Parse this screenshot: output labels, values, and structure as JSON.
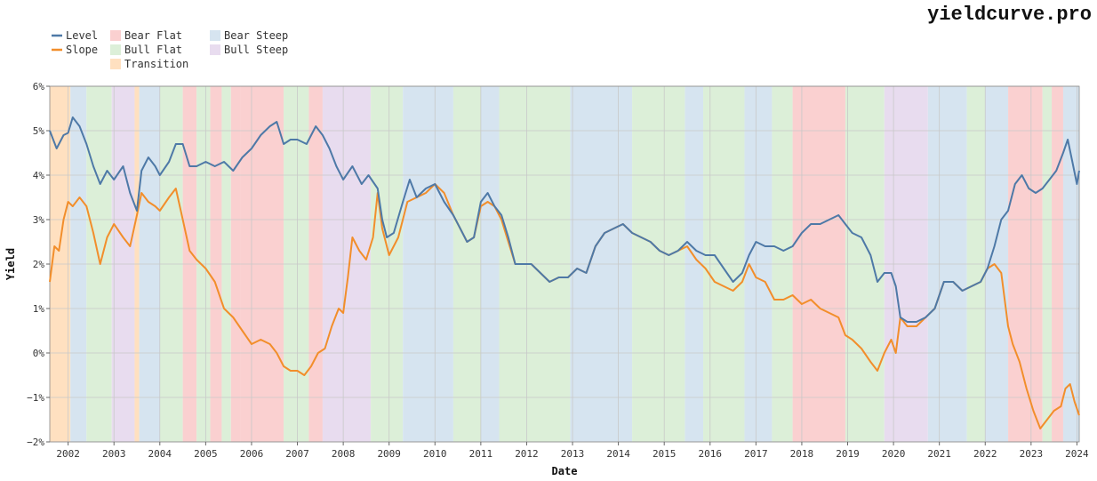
{
  "brand": "yieldcurve.pro",
  "chart_data": {
    "type": "line",
    "xlabel": "Date",
    "ylabel": "Yield",
    "xlim": [
      2001.6,
      2024.05
    ],
    "ylim": [
      -2,
      6
    ],
    "y_ticks": [
      6,
      5,
      4,
      3,
      2,
      1,
      0,
      -1,
      -2
    ],
    "y_tick_labels": [
      "6%",
      "5%",
      "4%",
      "3%",
      "2%",
      "1%",
      "0%",
      "−1%",
      "−2%"
    ],
    "x_ticks": [
      2002,
      2003,
      2004,
      2005,
      2006,
      2007,
      2008,
      2009,
      2010,
      2011,
      2012,
      2013,
      2014,
      2015,
      2016,
      2017,
      2018,
      2019,
      2020,
      2021,
      2022,
      2023,
      2024
    ],
    "grid": true,
    "legend_placement": "top-left",
    "legend": [
      {
        "label": "Level",
        "kind": "line",
        "color": "#4e79a7"
      },
      {
        "label": "Slope",
        "kind": "line",
        "color": "#f28e2b"
      },
      {
        "label": "Transition",
        "kind": "regime",
        "color": "#ffe0c0"
      },
      {
        "label": "Bear Flat",
        "kind": "regime",
        "color": "#fad0d0"
      },
      {
        "label": "Bull Flat",
        "kind": "regime",
        "color": "#dcefd8"
      },
      {
        "label": "Bear Steep",
        "kind": "regime",
        "color": "#d6e4f0"
      },
      {
        "label": "Bull Steep",
        "kind": "regime",
        "color": "#e8dcef"
      }
    ],
    "regime_colors": {
      "Transition": "#ffe0c0",
      "Bear Flat": "#fad0d0",
      "Bull Flat": "#dcefd8",
      "Bear Steep": "#d6e4f0",
      "Bull Steep": "#e8dcef"
    },
    "regimes": [
      {
        "start": 2001.6,
        "end": 2002.05,
        "regime": "Transition"
      },
      {
        "start": 2002.05,
        "end": 2002.4,
        "regime": "Bear Steep"
      },
      {
        "start": 2002.4,
        "end": 2002.95,
        "regime": "Bull Flat"
      },
      {
        "start": 2002.95,
        "end": 2003.45,
        "regime": "Bull Steep"
      },
      {
        "start": 2003.45,
        "end": 2003.55,
        "regime": "Transition"
      },
      {
        "start": 2003.55,
        "end": 2004.0,
        "regime": "Bear Steep"
      },
      {
        "start": 2004.0,
        "end": 2004.5,
        "regime": "Bull Flat"
      },
      {
        "start": 2004.5,
        "end": 2004.8,
        "regime": "Bear Flat"
      },
      {
        "start": 2004.8,
        "end": 2005.1,
        "regime": "Bull Flat"
      },
      {
        "start": 2005.1,
        "end": 2005.35,
        "regime": "Bear Flat"
      },
      {
        "start": 2005.35,
        "end": 2005.55,
        "regime": "Bull Flat"
      },
      {
        "start": 2005.55,
        "end": 2005.75,
        "regime": "Bear Flat"
      },
      {
        "start": 2005.75,
        "end": 2006.7,
        "regime": "Bear Flat"
      },
      {
        "start": 2006.7,
        "end": 2007.25,
        "regime": "Bull Flat"
      },
      {
        "start": 2007.25,
        "end": 2007.55,
        "regime": "Bear Flat"
      },
      {
        "start": 2007.55,
        "end": 2008.6,
        "regime": "Bull Steep"
      },
      {
        "start": 2008.6,
        "end": 2009.3,
        "regime": "Bull Flat"
      },
      {
        "start": 2009.3,
        "end": 2010.4,
        "regime": "Bear Steep"
      },
      {
        "start": 2010.4,
        "end": 2011.0,
        "regime": "Bull Flat"
      },
      {
        "start": 2011.0,
        "end": 2011.4,
        "regime": "Bear Steep"
      },
      {
        "start": 2011.4,
        "end": 2012.95,
        "regime": "Bull Flat"
      },
      {
        "start": 2012.95,
        "end": 2014.3,
        "regime": "Bear Steep"
      },
      {
        "start": 2014.3,
        "end": 2015.45,
        "regime": "Bull Flat"
      },
      {
        "start": 2015.45,
        "end": 2015.85,
        "regime": "Bear Steep"
      },
      {
        "start": 2015.85,
        "end": 2016.75,
        "regime": "Bull Flat"
      },
      {
        "start": 2016.75,
        "end": 2017.35,
        "regime": "Bear Steep"
      },
      {
        "start": 2017.35,
        "end": 2017.8,
        "regime": "Bull Flat"
      },
      {
        "start": 2017.8,
        "end": 2018.95,
        "regime": "Bear Flat"
      },
      {
        "start": 2018.95,
        "end": 2019.8,
        "regime": "Bull Flat"
      },
      {
        "start": 2019.8,
        "end": 2020.75,
        "regime": "Bull Steep"
      },
      {
        "start": 2020.75,
        "end": 2021.6,
        "regime": "Bear Steep"
      },
      {
        "start": 2021.6,
        "end": 2022.0,
        "regime": "Bull Flat"
      },
      {
        "start": 2022.0,
        "end": 2022.5,
        "regime": "Bear Steep"
      },
      {
        "start": 2022.5,
        "end": 2023.25,
        "regime": "Bear Flat"
      },
      {
        "start": 2023.25,
        "end": 2023.45,
        "regime": "Bull Flat"
      },
      {
        "start": 2023.45,
        "end": 2023.7,
        "regime": "Bear Flat"
      },
      {
        "start": 2023.7,
        "end": 2024.05,
        "regime": "Bear Steep"
      }
    ],
    "series": [
      {
        "name": "Level",
        "color": "#4e79a7",
        "x": [
          2001.6,
          2001.75,
          2001.9,
          2002.0,
          2002.1,
          2002.25,
          2002.4,
          2002.55,
          2002.7,
          2002.85,
          2003.0,
          2003.2,
          2003.35,
          2003.5,
          2003.6,
          2003.75,
          2003.9,
          2004.0,
          2004.2,
          2004.35,
          2004.5,
          2004.65,
          2004.8,
          2005.0,
          2005.2,
          2005.4,
          2005.6,
          2005.8,
          2006.0,
          2006.2,
          2006.4,
          2006.55,
          2006.7,
          2006.85,
          2007.0,
          2007.2,
          2007.4,
          2007.55,
          2007.7,
          2007.85,
          2008.0,
          2008.2,
          2008.4,
          2008.55,
          2008.75,
          2008.85,
          2008.95,
          2009.1,
          2009.3,
          2009.45,
          2009.6,
          2009.8,
          2010.0,
          2010.2,
          2010.4,
          2010.55,
          2010.7,
          2010.85,
          2011.0,
          2011.15,
          2011.3,
          2011.45,
          2011.6,
          2011.75,
          2011.9,
          2012.1,
          2012.3,
          2012.5,
          2012.7,
          2012.9,
          2013.1,
          2013.3,
          2013.5,
          2013.7,
          2013.9,
          2014.1,
          2014.3,
          2014.5,
          2014.7,
          2014.9,
          2015.1,
          2015.3,
          2015.5,
          2015.7,
          2015.9,
          2016.1,
          2016.3,
          2016.5,
          2016.7,
          2016.85,
          2017.0,
          2017.2,
          2017.4,
          2017.6,
          2017.8,
          2018.0,
          2018.2,
          2018.4,
          2018.6,
          2018.8,
          2018.95,
          2019.1,
          2019.3,
          2019.5,
          2019.65,
          2019.8,
          2019.95,
          2020.05,
          2020.15,
          2020.3,
          2020.5,
          2020.7,
          2020.9,
          2021.1,
          2021.3,
          2021.5,
          2021.7,
          2021.9,
          2022.05,
          2022.2,
          2022.35,
          2022.5,
          2022.65,
          2022.8,
          2022.95,
          2023.1,
          2023.25,
          2023.4,
          2023.55,
          2023.7,
          2023.8,
          2023.9,
          2024.0,
          2024.05
        ],
        "y": [
          5.0,
          4.6,
          4.9,
          4.95,
          5.3,
          5.1,
          4.7,
          4.2,
          3.8,
          4.1,
          3.9,
          4.2,
          3.6,
          3.2,
          4.1,
          4.4,
          4.2,
          4.0,
          4.3,
          4.7,
          4.7,
          4.2,
          4.2,
          4.3,
          4.2,
          4.3,
          4.1,
          4.4,
          4.6,
          4.9,
          5.1,
          5.2,
          4.7,
          4.8,
          4.8,
          4.7,
          5.1,
          4.9,
          4.6,
          4.2,
          3.9,
          4.2,
          3.8,
          4.0,
          3.7,
          3.0,
          2.6,
          2.7,
          3.4,
          3.9,
          3.5,
          3.7,
          3.8,
          3.4,
          3.1,
          2.8,
          2.5,
          2.6,
          3.4,
          3.6,
          3.3,
          3.1,
          2.6,
          2.0,
          2.0,
          2.0,
          1.8,
          1.6,
          1.7,
          1.7,
          1.9,
          1.8,
          2.4,
          2.7,
          2.8,
          2.9,
          2.7,
          2.6,
          2.5,
          2.3,
          2.2,
          2.3,
          2.5,
          2.3,
          2.2,
          2.2,
          1.9,
          1.6,
          1.8,
          2.2,
          2.5,
          2.4,
          2.4,
          2.3,
          2.4,
          2.7,
          2.9,
          2.9,
          3.0,
          3.1,
          2.9,
          2.7,
          2.6,
          2.2,
          1.6,
          1.8,
          1.8,
          1.5,
          0.8,
          0.7,
          0.7,
          0.8,
          1.0,
          1.6,
          1.6,
          1.4,
          1.5,
          1.6,
          1.9,
          2.4,
          3.0,
          3.2,
          3.8,
          4.0,
          3.7,
          3.6,
          3.7,
          3.9,
          4.1,
          4.5,
          4.8,
          4.3,
          3.8,
          4.1
        ]
      },
      {
        "name": "Slope",
        "color": "#f28e2b",
        "x": [
          2001.6,
          2001.7,
          2001.8,
          2001.9,
          2002.0,
          2002.1,
          2002.25,
          2002.4,
          2002.55,
          2002.7,
          2002.85,
          2003.0,
          2003.2,
          2003.35,
          2003.5,
          2003.6,
          2003.75,
          2003.9,
          2004.0,
          2004.2,
          2004.35,
          2004.5,
          2004.65,
          2004.8,
          2005.0,
          2005.2,
          2005.4,
          2005.6,
          2005.8,
          2006.0,
          2006.2,
          2006.4,
          2006.55,
          2006.7,
          2006.85,
          2007.0,
          2007.15,
          2007.3,
          2007.45,
          2007.6,
          2007.75,
          2007.9,
          2008.0,
          2008.1,
          2008.2,
          2008.35,
          2008.5,
          2008.65,
          2008.75,
          2008.85,
          2009.0,
          2009.2,
          2009.4,
          2009.6,
          2009.8,
          2010.0,
          2010.2,
          2010.4,
          2010.55,
          2010.7,
          2010.85,
          2011.0,
          2011.15,
          2011.3,
          2011.45,
          2011.6,
          2011.75,
          2011.9,
          2012.1,
          2012.3,
          2012.5,
          2012.7,
          2012.9,
          2013.1,
          2013.3,
          2013.5,
          2013.7,
          2013.9,
          2014.1,
          2014.3,
          2014.5,
          2014.7,
          2014.9,
          2015.1,
          2015.3,
          2015.5,
          2015.7,
          2015.9,
          2016.1,
          2016.3,
          2016.5,
          2016.7,
          2016.85,
          2017.0,
          2017.2,
          2017.4,
          2017.6,
          2017.8,
          2018.0,
          2018.2,
          2018.4,
          2018.6,
          2018.8,
          2018.95,
          2019.1,
          2019.3,
          2019.5,
          2019.65,
          2019.8,
          2019.95,
          2020.05,
          2020.15,
          2020.3,
          2020.5,
          2020.7,
          2020.9,
          2021.1,
          2021.3,
          2021.5,
          2021.7,
          2021.9,
          2022.05,
          2022.2,
          2022.35,
          2022.5,
          2022.6,
          2022.75,
          2022.9,
          2023.05,
          2023.2,
          2023.35,
          2023.5,
          2023.65,
          2023.75,
          2023.85,
          2023.95,
          2024.05
        ],
        "y": [
          1.6,
          2.4,
          2.3,
          3.0,
          3.4,
          3.3,
          3.5,
          3.3,
          2.7,
          2.0,
          2.6,
          2.9,
          2.6,
          2.4,
          3.1,
          3.6,
          3.4,
          3.3,
          3.2,
          3.5,
          3.7,
          3.0,
          2.3,
          2.1,
          1.9,
          1.6,
          1.0,
          0.8,
          0.5,
          0.2,
          0.3,
          0.2,
          0.0,
          -0.3,
          -0.4,
          -0.4,
          -0.5,
          -0.3,
          0.0,
          0.1,
          0.6,
          1.0,
          0.9,
          1.7,
          2.6,
          2.3,
          2.1,
          2.6,
          3.6,
          2.8,
          2.2,
          2.6,
          3.4,
          3.5,
          3.6,
          3.8,
          3.6,
          3.1,
          2.8,
          2.5,
          2.6,
          3.3,
          3.4,
          3.3,
          3.0,
          2.5,
          2.0,
          2.0,
          2.0,
          1.8,
          1.6,
          1.7,
          1.7,
          1.9,
          1.8,
          2.4,
          2.7,
          2.8,
          2.9,
          2.7,
          2.6,
          2.5,
          2.3,
          2.2,
          2.3,
          2.4,
          2.1,
          1.9,
          1.6,
          1.5,
          1.4,
          1.6,
          2.0,
          1.7,
          1.6,
          1.2,
          1.2,
          1.3,
          1.1,
          1.2,
          1.0,
          0.9,
          0.8,
          0.4,
          0.3,
          0.1,
          -0.2,
          -0.4,
          0.0,
          0.3,
          0.0,
          0.8,
          0.6,
          0.6,
          0.8,
          1.0,
          1.6,
          1.6,
          1.4,
          1.5,
          1.6,
          1.9,
          2.0,
          1.8,
          0.6,
          0.2,
          -0.2,
          -0.8,
          -1.3,
          -1.7,
          -1.5,
          -1.3,
          -1.2,
          -0.8,
          -0.7,
          -1.1,
          -1.4
        ]
      }
    ]
  }
}
